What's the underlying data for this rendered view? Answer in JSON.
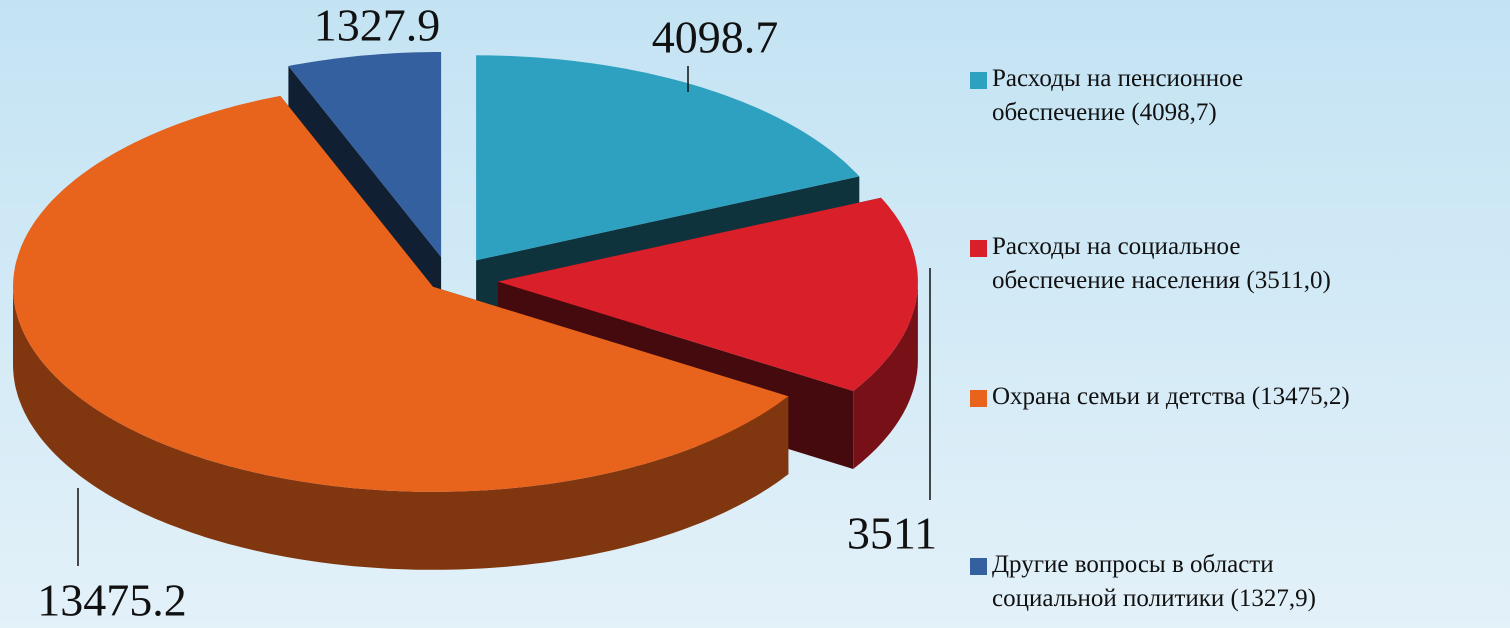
{
  "chart_data": {
    "type": "pie",
    "categories": [
      "Расходы на пенсионное\nобеспечение (4098,7)",
      "Расходы на социальное\nобеспечение населения (3511,0)",
      "Охрана семьи и детства (13475,2)",
      "Другие вопросы в области\nсоциальной политики (1327,9)"
    ],
    "values": [
      4098.7,
      3511,
      13475.2,
      1327.9
    ],
    "colors": [
      "#2ea0c0",
      "#d81f2a",
      "#e8631c",
      "#34609f"
    ],
    "legend": "right"
  }
}
